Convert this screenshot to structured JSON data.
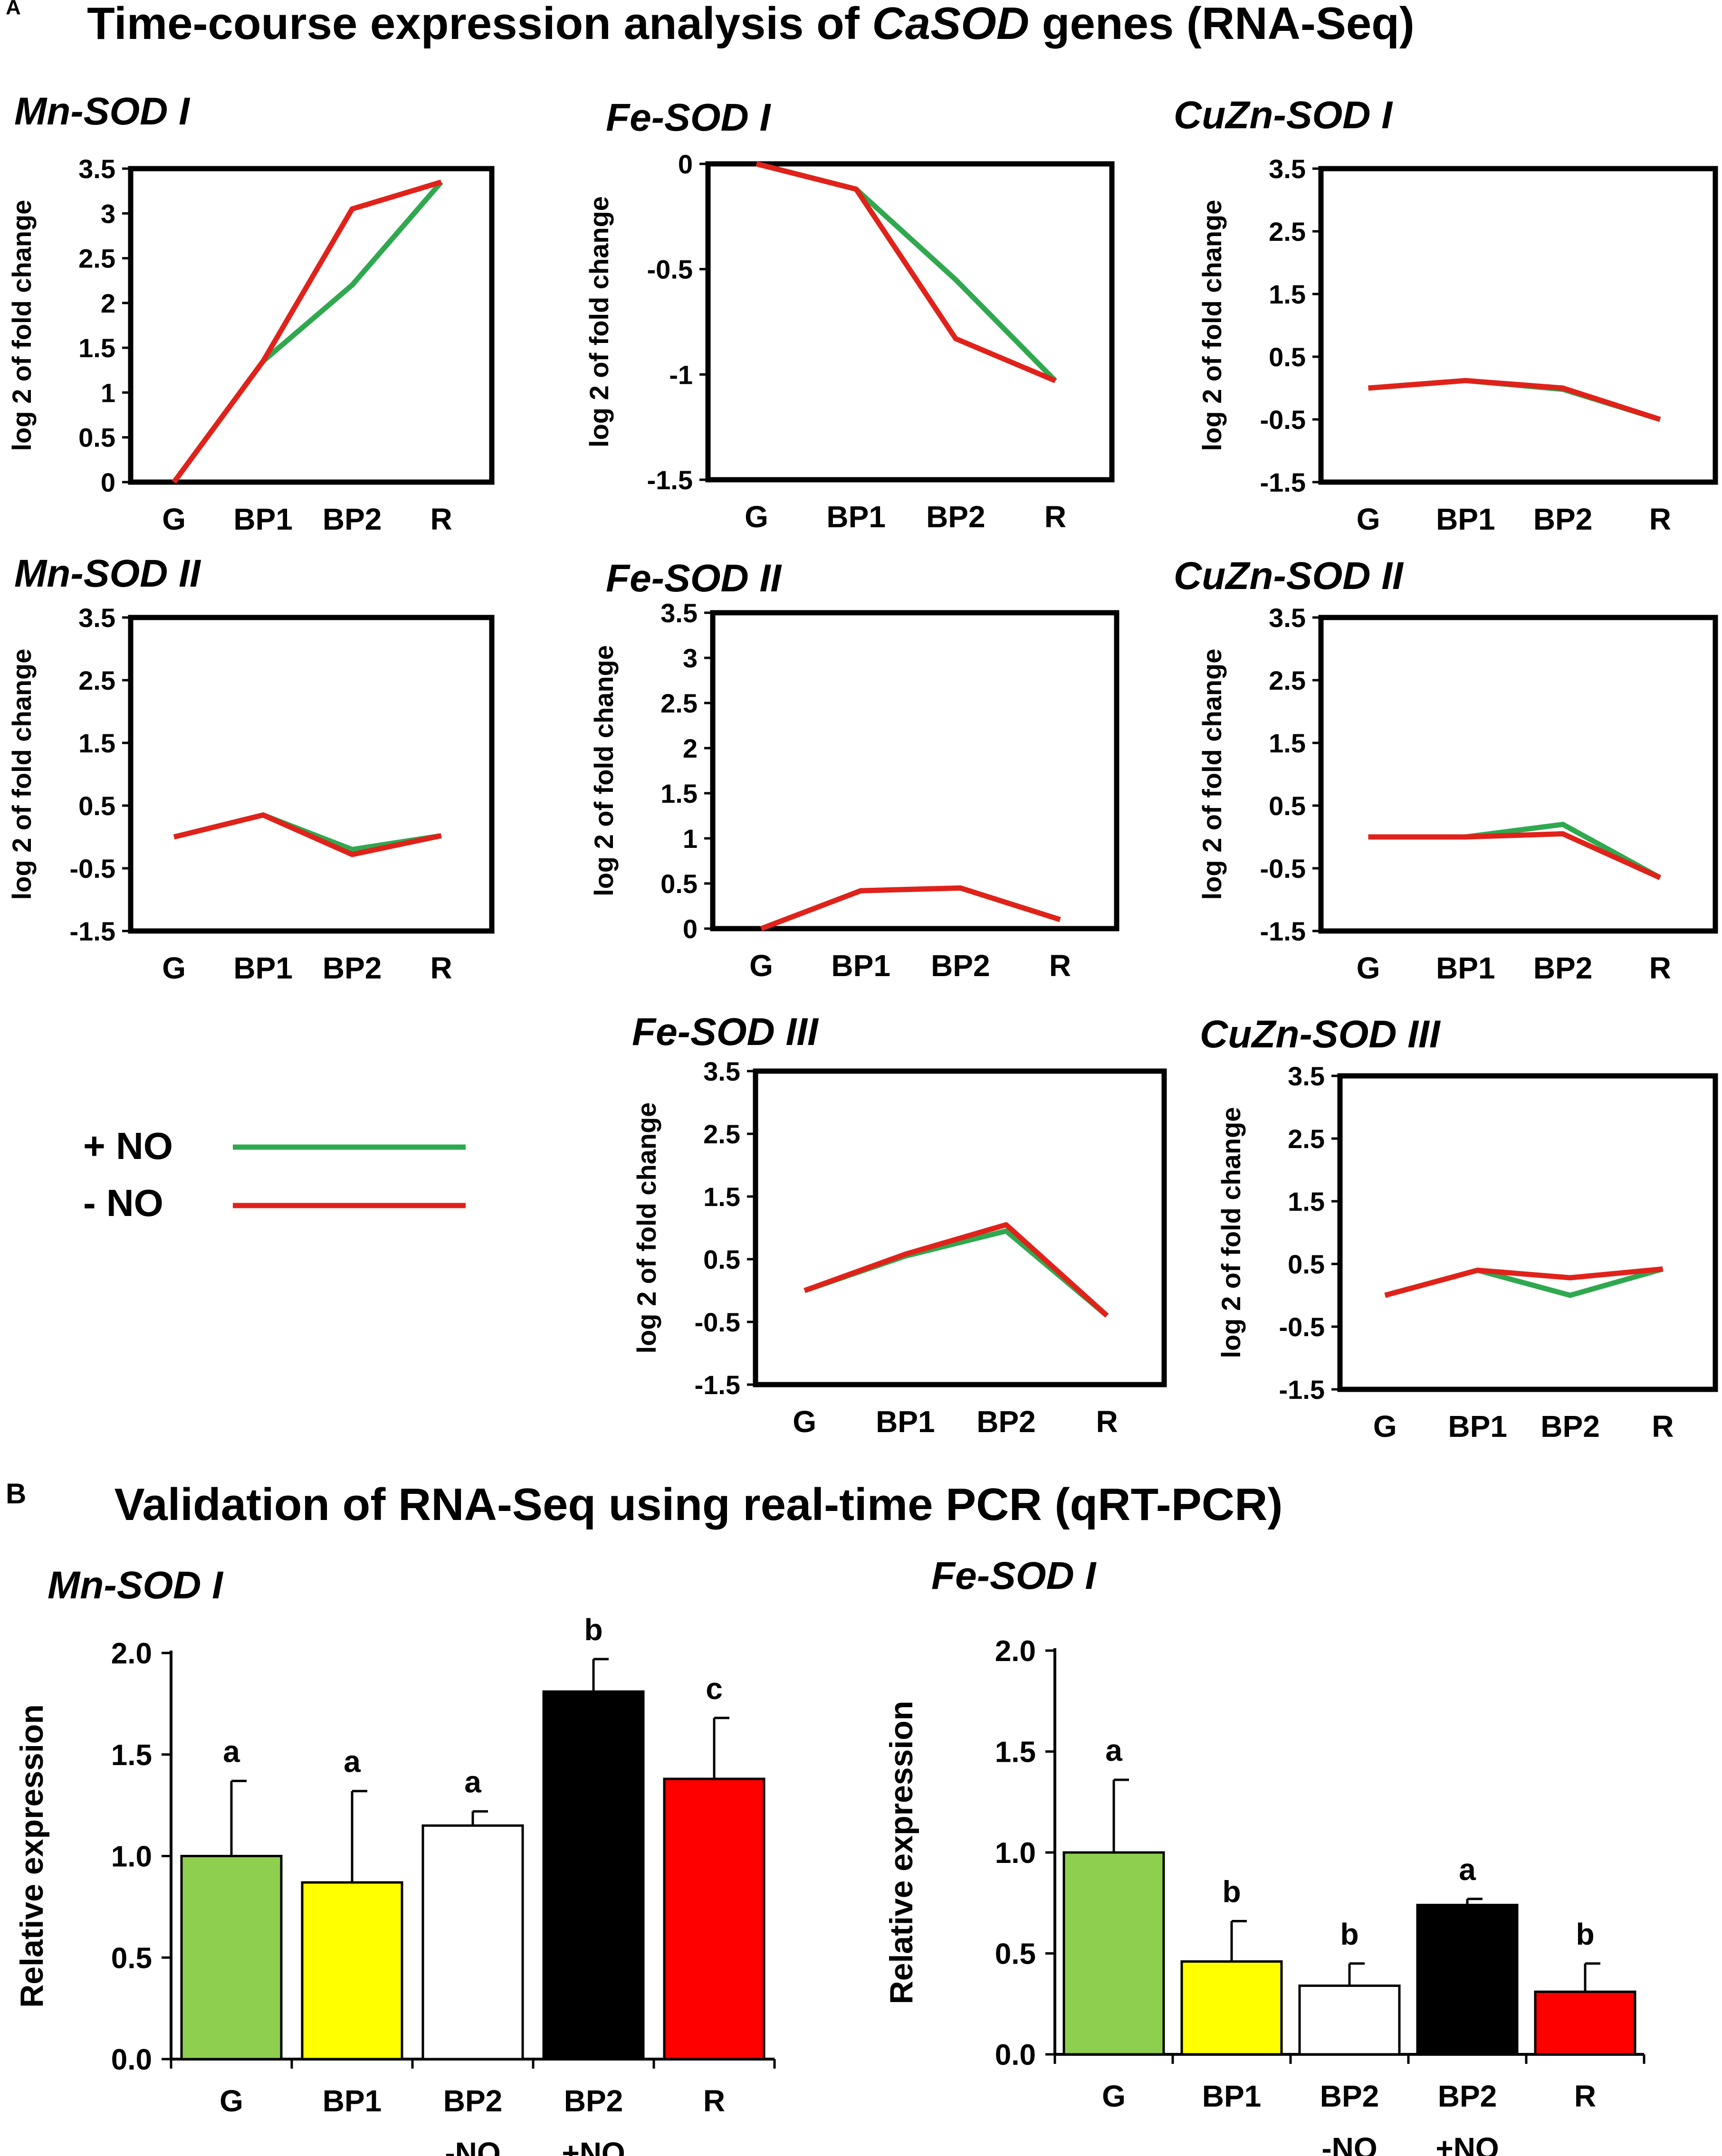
{
  "panel_a": {
    "letter": "A",
    "title_prefix": "Time-course expression analysis of ",
    "title_italic": "CaSOD",
    "title_suffix": " genes (RNA-Seq)"
  },
  "panel_b": {
    "letter": "B",
    "title": "Validation of RNA-Seq using real-time PCR (qRT-PCR)"
  },
  "legend": [
    {
      "label": "+ NO",
      "color": "#2fa84f"
    },
    {
      "label": "-  NO",
      "color": "#e0221b"
    }
  ],
  "colors": {
    "plus_no": "#2fa84f",
    "minus_no": "#e0221b",
    "axis": "#000000"
  },
  "chart_data": [
    {
      "type": "line",
      "title": "Mn-SOD I",
      "xlabel": "",
      "ylabel": "log 2 of fold change",
      "categories": [
        "G",
        "BP1",
        "BP2",
        "R"
      ],
      "ylim": [
        0,
        3.5
      ],
      "yticks": [
        "0",
        "0.5",
        "1",
        "1.5",
        "2",
        "2.5",
        "3",
        "3.5"
      ],
      "series": [
        {
          "name": "+ NO",
          "values": [
            0,
            1.35,
            2.2,
            3.35
          ]
        },
        {
          "name": "- NO",
          "values": [
            0,
            1.35,
            3.05,
            3.35
          ]
        }
      ]
    },
    {
      "type": "line",
      "title": "Fe-SOD I",
      "xlabel": "",
      "ylabel": "log 2 of fold change",
      "categories": [
        "G",
        "BP1",
        "BP2",
        "R"
      ],
      "ylim": [
        -1.5,
        0
      ],
      "yticks": [
        "-1.5",
        "-1",
        "-0.5",
        "0"
      ],
      "series": [
        {
          "name": "+ NO",
          "values": [
            0,
            -0.12,
            -0.55,
            -1.03
          ]
        },
        {
          "name": "- NO",
          "values": [
            0,
            -0.12,
            -0.83,
            -1.03
          ]
        }
      ]
    },
    {
      "type": "line",
      "title": "CuZn-SOD I",
      "xlabel": "",
      "ylabel": "log 2 of fold change",
      "categories": [
        "G",
        "BP1",
        "BP2",
        "R"
      ],
      "ylim": [
        -1.5,
        3.5
      ],
      "yticks": [
        "-1.5",
        "-0.5",
        "0.5",
        "1.5",
        "2.5",
        "3.5"
      ],
      "series": [
        {
          "name": "+ NO",
          "values": [
            0,
            0.12,
            -0.02,
            -0.5
          ]
        },
        {
          "name": "- NO",
          "values": [
            0,
            0.12,
            0.0,
            -0.5
          ]
        }
      ]
    },
    {
      "type": "line",
      "title": "Mn-SOD II",
      "xlabel": "",
      "ylabel": "log 2 of fold change",
      "categories": [
        "G",
        "BP1",
        "BP2",
        "R"
      ],
      "ylim": [
        -1.5,
        3.5
      ],
      "yticks": [
        "-1.5",
        "-0.5",
        "0.5",
        "1.5",
        "2.5",
        "3.5"
      ],
      "series": [
        {
          "name": "+ NO",
          "values": [
            0,
            0.35,
            -0.2,
            0.02
          ]
        },
        {
          "name": "- NO",
          "values": [
            0,
            0.35,
            -0.28,
            0.02
          ]
        }
      ]
    },
    {
      "type": "line",
      "title": "Fe-SOD II",
      "xlabel": "",
      "ylabel": "log 2 of fold change",
      "categories": [
        "G",
        "BP1",
        "BP2",
        "R"
      ],
      "ylim": [
        0,
        3.5
      ],
      "yticks": [
        "0",
        "0.5",
        "1",
        "1.5",
        "2",
        "2.5",
        "3",
        "3.5"
      ],
      "series": [
        {
          "name": "+ NO",
          "values": [
            0,
            0.42,
            0.45,
            0.1
          ]
        },
        {
          "name": "- NO",
          "values": [
            0,
            0.42,
            0.45,
            0.1
          ]
        }
      ]
    },
    {
      "type": "line",
      "title": "CuZn-SOD II",
      "xlabel": "",
      "ylabel": "log 2 of fold change",
      "categories": [
        "G",
        "BP1",
        "BP2",
        "R"
      ],
      "ylim": [
        -1.5,
        3.5
      ],
      "yticks": [
        "-1.5",
        "-0.5",
        "0.5",
        "1.5",
        "2.5",
        "3.5"
      ],
      "series": [
        {
          "name": "+ NO",
          "values": [
            0,
            0,
            0.2,
            -0.65
          ]
        },
        {
          "name": "- NO",
          "values": [
            0,
            0,
            0.05,
            -0.65
          ]
        }
      ]
    },
    {
      "type": "line",
      "title": "Fe-SOD III",
      "xlabel": "",
      "ylabel": "log 2 of fold change",
      "categories": [
        "G",
        "BP1",
        "BP2",
        "R"
      ],
      "ylim": [
        -1.5,
        3.5
      ],
      "yticks": [
        "-1.5",
        "-0.5",
        "0.5",
        "1.5",
        "2.5",
        "3.5"
      ],
      "series": [
        {
          "name": "+ NO",
          "values": [
            0,
            0.55,
            0.95,
            -0.4
          ]
        },
        {
          "name": "- NO",
          "values": [
            0,
            0.58,
            1.05,
            -0.4
          ]
        }
      ]
    },
    {
      "type": "line",
      "title": "CuZn-SOD III",
      "xlabel": "",
      "ylabel": "log 2 of fold change",
      "categories": [
        "G",
        "BP1",
        "BP2",
        "R"
      ],
      "ylim": [
        -1.5,
        3.5
      ],
      "yticks": [
        "-1.5",
        "-0.5",
        "0.5",
        "1.5",
        "2.5",
        "3.5"
      ],
      "series": [
        {
          "name": "+ NO",
          "values": [
            0,
            0.4,
            0.0,
            0.42
          ]
        },
        {
          "name": "- NO",
          "values": [
            0,
            0.4,
            0.28,
            0.42
          ]
        }
      ]
    },
    {
      "type": "bar",
      "title": "Mn-SOD I",
      "xlabel": "",
      "ylabel": "Relative expression",
      "ylim": [
        0,
        2.0
      ],
      "yticks": [
        "0.0",
        "0.5",
        "1.0",
        "1.5",
        "2.0"
      ],
      "categories": [
        [
          "G"
        ],
        [
          "BP1"
        ],
        [
          "BP2",
          "-NO"
        ],
        [
          "BP2",
          "+NO"
        ],
        [
          "R"
        ]
      ],
      "values": [
        1.0,
        0.87,
        1.15,
        1.81,
        1.38
      ],
      "errors": [
        0.37,
        0.45,
        0.07,
        0.16,
        0.3
      ],
      "letters": [
        "a",
        "a",
        "a",
        "b",
        "c"
      ],
      "colors": [
        "#8fcf4f",
        "#ffff00",
        "#ffffff",
        "#000000",
        "#ff0000"
      ]
    },
    {
      "type": "bar",
      "title": "Fe-SOD I",
      "xlabel": "",
      "ylabel": "Relative expression",
      "ylim": [
        0,
        2.0
      ],
      "yticks": [
        "0.0",
        "0.5",
        "1.0",
        "1.5",
        "2.0"
      ],
      "categories": [
        [
          "G"
        ],
        [
          "BP1"
        ],
        [
          "BP2",
          "-NO"
        ],
        [
          "BP2",
          "+NO"
        ],
        [
          "R"
        ]
      ],
      "values": [
        1.0,
        0.46,
        0.34,
        0.74,
        0.31
      ],
      "errors": [
        0.36,
        0.2,
        0.11,
        0.03,
        0.14
      ],
      "letters": [
        "a",
        "b",
        "b",
        "a",
        "b"
      ],
      "colors": [
        "#8fcf4f",
        "#ffff00",
        "#ffffff",
        "#000000",
        "#ff0000"
      ]
    }
  ]
}
